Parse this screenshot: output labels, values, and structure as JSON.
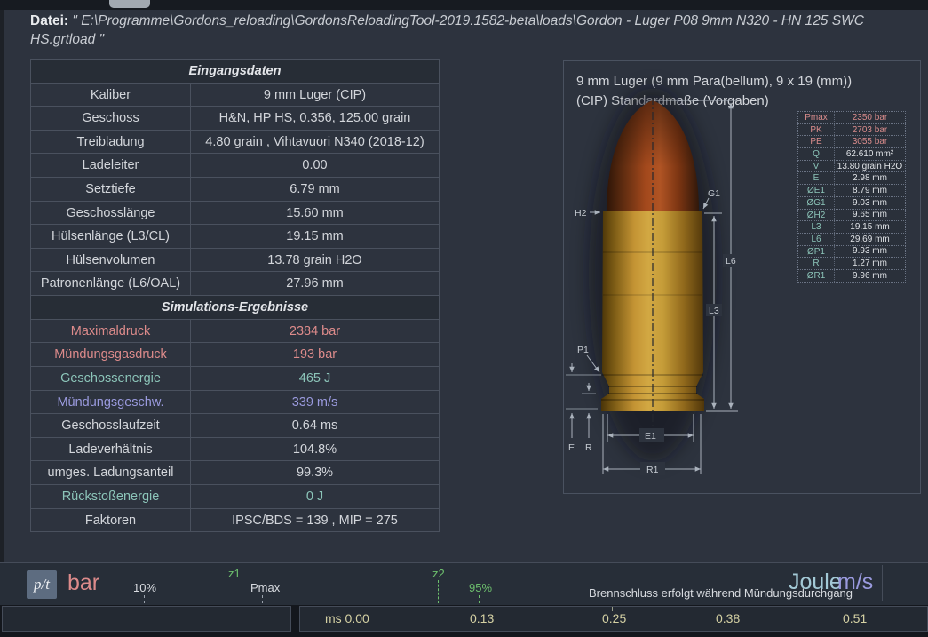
{
  "header": {
    "label": "Datei:",
    "path": "\" E:\\Programme\\Gordons_reloading\\GordonsReloadingTool-2019.1582-beta\\loads\\Gordon - Luger P08 9mm N320 - HN 125 SWC HS.grtload \""
  },
  "input_table": {
    "title": "Eingangsdaten",
    "rows": [
      {
        "label": "Kaliber",
        "value": "9 mm Luger (CIP)",
        "c": ""
      },
      {
        "label": "Geschoss",
        "value": "H&N, HP HS, 0.356, 125.00 grain",
        "c": ""
      },
      {
        "label": "Treibladung",
        "value": "4.80 grain , Vihtavuori N340 (2018-12)",
        "c": ""
      },
      {
        "label": "Ladeleiter",
        "value": "0.00",
        "c": ""
      },
      {
        "label": "Setztiefe",
        "value": "6.79 mm",
        "c": ""
      },
      {
        "label": "Geschosslänge",
        "value": "15.60 mm",
        "c": ""
      },
      {
        "label": "Hülsenlänge (L3/CL)",
        "value": "19.15 mm",
        "c": ""
      },
      {
        "label": "Hülsenvolumen",
        "value": "13.78 grain H2O",
        "c": ""
      },
      {
        "label": "Patronenlänge (L6/OAL)",
        "value": "27.96 mm",
        "c": ""
      }
    ]
  },
  "results_table": {
    "title": "Simulations-Ergebnisse",
    "rows": [
      {
        "label": "Maximaldruck",
        "value": "2384 bar",
        "c": "red"
      },
      {
        "label": "Mündungsgasdruck",
        "value": "193 bar",
        "c": "red"
      },
      {
        "label": "Geschossenergie",
        "value": "465 J",
        "c": "teal"
      },
      {
        "label": "Mündungsgeschw.",
        "value": "339 m/s",
        "c": "purple"
      },
      {
        "label": "Geschosslaufzeit",
        "value": "0.64 ms",
        "c": ""
      },
      {
        "label": "Ladeverhältnis",
        "value": "104.8%",
        "c": ""
      },
      {
        "label": "umges. Ladungsanteil",
        "value": "99.3%",
        "c": ""
      },
      {
        "label": "Rückstoßenergie",
        "value": "0 J",
        "c": "teal"
      },
      {
        "label": "Faktoren",
        "value": "IPSC/BDS = 139 , MIP = 275",
        "c": ""
      }
    ]
  },
  "diagram": {
    "title1": "9 mm Luger (9 mm Para(bellum), 9 x 19 (mm))",
    "title2": "(CIP) Standardmaße (Vorgaben)",
    "spec_rows": [
      {
        "label": "Pmax",
        "value": "2350 bar",
        "c": "red"
      },
      {
        "label": "PK",
        "value": "2703 bar",
        "c": "red"
      },
      {
        "label": "PE",
        "value": "3055 bar",
        "c": "red"
      },
      {
        "label": "Q",
        "value": "62.610 mm²",
        "c": ""
      },
      {
        "label": "V",
        "value": "13.80 grain H2O",
        "c": ""
      },
      {
        "label": "E",
        "value": "2.98 mm",
        "c": ""
      },
      {
        "label": "ØE1",
        "value": "8.79 mm",
        "c": ""
      },
      {
        "label": "ØG1",
        "value": "9.03 mm",
        "c": ""
      },
      {
        "label": "ØH2",
        "value": "9.65 mm",
        "c": ""
      },
      {
        "label": "L3",
        "value": "19.15 mm",
        "c": ""
      },
      {
        "label": "L6",
        "value": "29.69 mm",
        "c": ""
      },
      {
        "label": "ØP1",
        "value": "9.93 mm",
        "c": ""
      },
      {
        "label": "R",
        "value": "1.27 mm",
        "c": ""
      },
      {
        "label": "ØR1",
        "value": "9.96 mm",
        "c": ""
      }
    ],
    "dim_labels": {
      "h2": "H2",
      "g1": "G1",
      "l6": "L6",
      "l3": "L3",
      "p1": "P1",
      "e": "E",
      "r": "R",
      "e1": "E1",
      "r1": "R1"
    }
  },
  "toolbar": {
    "pt": "p/t",
    "unit": "bar",
    "pct": "10%",
    "z1": "z1",
    "z1_target": "Pmax",
    "z2": "z2",
    "z2_value": "95%",
    "status": "Brennschluss erfolgt während Mündungsdurchgang",
    "axis_energy": "Joule",
    "axis_velocity": "m/s"
  },
  "axis": {
    "labels": [
      "ms 0.00",
      "0.13",
      "0.25",
      "0.38",
      "0.51"
    ]
  },
  "colors": {
    "background": "#2d333e",
    "pressure_red": "#dd8b8b",
    "energy_teal": "#8cc5b9",
    "velocity_purple": "#9a9ade",
    "marker_green": "#6dbf6d",
    "axis_khaki": "#d5d1a4"
  }
}
